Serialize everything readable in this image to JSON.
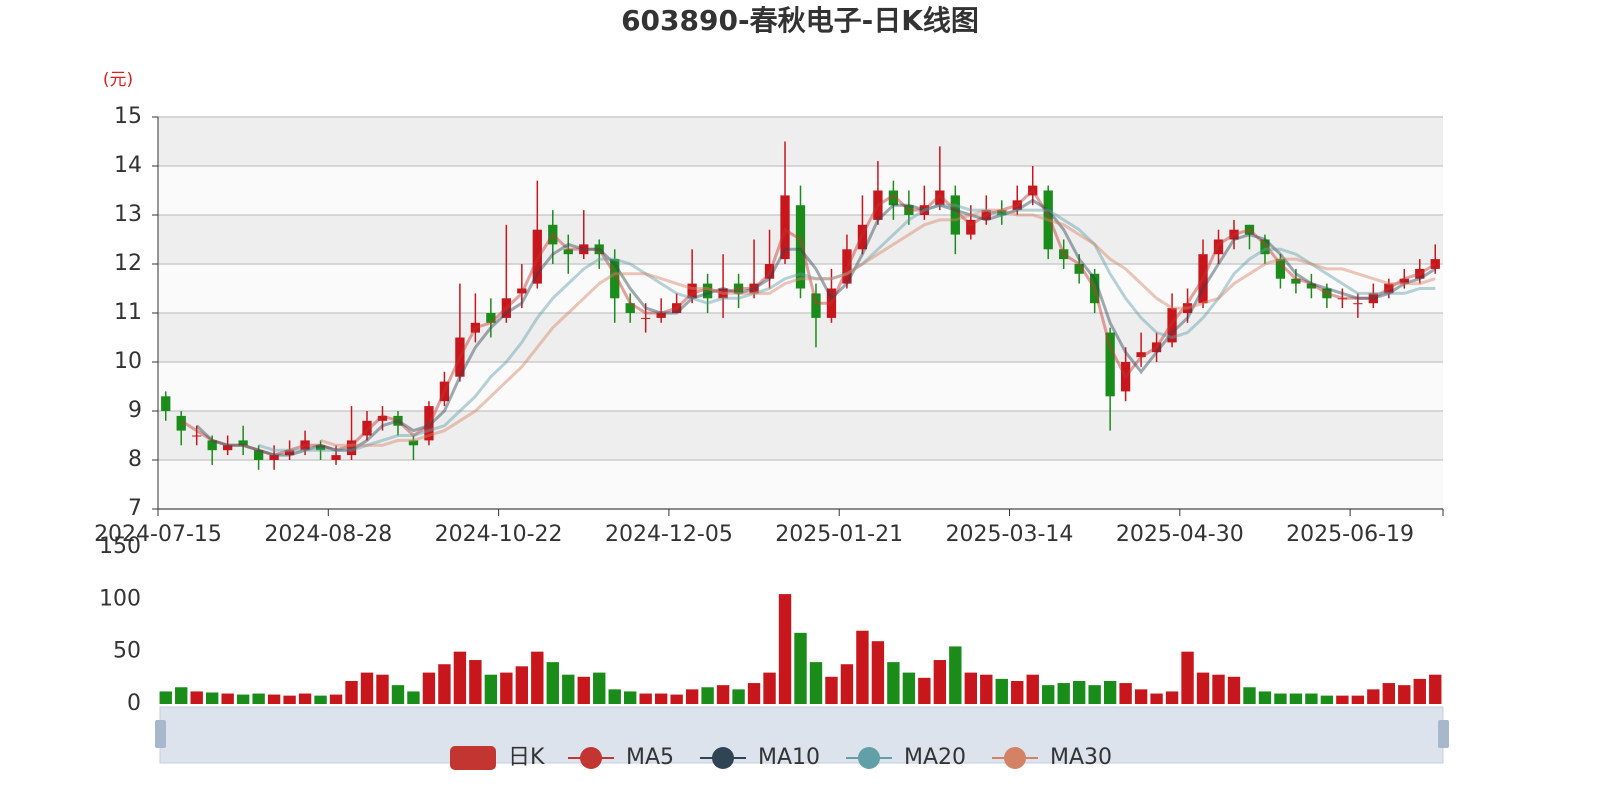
{
  "chart_data": {
    "type": "candlestick",
    "title": "603890-春秋电子-日K线图",
    "y_label": "(元)",
    "candle_name": "日K",
    "candle_color": "#c23531",
    "up_color": "#c8161d",
    "down_color": "#1a8c1a",
    "categories": [
      "2024-07-15",
      null,
      null,
      null,
      null,
      null,
      null,
      null,
      null,
      null,
      null,
      "2024-08-28",
      null,
      null,
      null,
      null,
      null,
      null,
      null,
      null,
      null,
      null,
      "2024-10-22",
      null,
      null,
      null,
      null,
      null,
      null,
      null,
      null,
      null,
      null,
      "2024-12-05",
      null,
      null,
      null,
      null,
      null,
      null,
      null,
      null,
      null,
      null,
      "2025-01-21",
      null,
      null,
      null,
      null,
      null,
      null,
      null,
      null,
      null,
      null,
      "2025-03-14",
      null,
      null,
      null,
      null,
      null,
      null,
      null,
      null,
      null,
      null,
      "2025-04-30",
      null,
      null,
      null,
      null,
      null,
      null,
      null,
      null,
      null,
      null,
      "2025-06-19",
      null,
      null,
      null,
      null,
      null
    ],
    "ohlc": [
      [
        9.3,
        9.0,
        8.8,
        9.4
      ],
      [
        8.9,
        8.6,
        8.3,
        9.0
      ],
      [
        8.5,
        8.5,
        8.3,
        8.7
      ],
      [
        8.4,
        8.2,
        7.9,
        8.5
      ],
      [
        8.2,
        8.3,
        8.1,
        8.5
      ],
      [
        8.4,
        8.3,
        8.1,
        8.7
      ],
      [
        8.2,
        8.0,
        7.8,
        8.3
      ],
      [
        8.0,
        8.1,
        7.8,
        8.3
      ],
      [
        8.1,
        8.2,
        8.0,
        8.4
      ],
      [
        8.2,
        8.4,
        8.1,
        8.6
      ],
      [
        8.3,
        8.2,
        8.0,
        8.4
      ],
      [
        8.0,
        8.1,
        7.9,
        8.3
      ],
      [
        8.1,
        8.4,
        8.0,
        9.1
      ],
      [
        8.5,
        8.8,
        8.4,
        9.0
      ],
      [
        8.8,
        8.9,
        8.6,
        9.1
      ],
      [
        8.9,
        8.7,
        8.5,
        9.0
      ],
      [
        8.4,
        8.3,
        8.0,
        8.5
      ],
      [
        8.4,
        9.1,
        8.3,
        9.2
      ],
      [
        9.2,
        9.6,
        9.1,
        9.8
      ],
      [
        9.7,
        10.5,
        9.6,
        11.6
      ],
      [
        10.6,
        10.8,
        10.4,
        11.4
      ],
      [
        11.0,
        10.8,
        10.5,
        11.3
      ],
      [
        10.9,
        11.3,
        10.8,
        12.8
      ],
      [
        11.4,
        11.5,
        11.1,
        12.0
      ],
      [
        11.6,
        12.7,
        11.5,
        13.7
      ],
      [
        12.8,
        12.4,
        12.0,
        13.1
      ],
      [
        12.3,
        12.2,
        11.8,
        12.6
      ],
      [
        12.2,
        12.4,
        12.1,
        13.1
      ],
      [
        12.4,
        12.2,
        11.9,
        12.5
      ],
      [
        12.1,
        11.3,
        10.8,
        12.3
      ],
      [
        11.2,
        11.0,
        10.8,
        11.4
      ],
      [
        10.9,
        10.9,
        10.6,
        11.2
      ],
      [
        10.9,
        11.0,
        10.8,
        11.3
      ],
      [
        11.0,
        11.2,
        11.0,
        11.4
      ],
      [
        11.3,
        11.6,
        11.2,
        12.3
      ],
      [
        11.6,
        11.3,
        11.0,
        11.8
      ],
      [
        11.3,
        11.5,
        10.9,
        12.2
      ],
      [
        11.6,
        11.4,
        11.1,
        11.8
      ],
      [
        11.4,
        11.6,
        11.3,
        12.5
      ],
      [
        11.7,
        12.0,
        11.5,
        12.7
      ],
      [
        12.1,
        13.4,
        12.0,
        14.5
      ],
      [
        13.2,
        11.5,
        11.3,
        13.6
      ],
      [
        11.4,
        10.9,
        10.3,
        11.6
      ],
      [
        10.9,
        11.5,
        10.8,
        11.9
      ],
      [
        11.6,
        12.3,
        11.5,
        12.6
      ],
      [
        12.3,
        12.8,
        12.2,
        13.4
      ],
      [
        12.9,
        13.5,
        12.8,
        14.1
      ],
      [
        13.5,
        13.2,
        12.9,
        13.7
      ],
      [
        13.2,
        13.0,
        12.8,
        13.5
      ],
      [
        13.0,
        13.2,
        12.9,
        13.6
      ],
      [
        13.2,
        13.5,
        13.1,
        14.4
      ],
      [
        13.4,
        12.6,
        12.2,
        13.6
      ],
      [
        12.6,
        12.9,
        12.5,
        13.2
      ],
      [
        12.9,
        13.1,
        12.8,
        13.4
      ],
      [
        13.1,
        13.0,
        12.8,
        13.3
      ],
      [
        13.1,
        13.3,
        13.0,
        13.6
      ],
      [
        13.4,
        13.6,
        13.2,
        14.0
      ],
      [
        13.5,
        12.3,
        12.1,
        13.6
      ],
      [
        12.3,
        12.1,
        11.9,
        12.5
      ],
      [
        12.0,
        11.8,
        11.6,
        12.2
      ],
      [
        11.8,
        11.2,
        11.0,
        11.9
      ],
      [
        10.6,
        9.3,
        8.6,
        10.7
      ],
      [
        9.4,
        10.0,
        9.2,
        10.3
      ],
      [
        10.1,
        10.2,
        9.9,
        10.6
      ],
      [
        10.2,
        10.4,
        10.0,
        10.6
      ],
      [
        10.4,
        11.1,
        10.3,
        11.4
      ],
      [
        11.0,
        11.2,
        10.8,
        11.5
      ],
      [
        11.2,
        12.2,
        11.1,
        12.5
      ],
      [
        12.2,
        12.5,
        12.0,
        12.7
      ],
      [
        12.5,
        12.7,
        12.3,
        12.9
      ],
      [
        12.8,
        12.6,
        12.3,
        12.8
      ],
      [
        12.5,
        12.2,
        12.0,
        12.6
      ],
      [
        12.1,
        11.7,
        11.5,
        12.2
      ],
      [
        11.7,
        11.6,
        11.4,
        11.9
      ],
      [
        11.6,
        11.5,
        11.3,
        11.8
      ],
      [
        11.5,
        11.3,
        11.1,
        11.6
      ],
      [
        11.3,
        11.3,
        11.1,
        11.5
      ],
      [
        11.2,
        11.2,
        10.9,
        11.4
      ],
      [
        11.2,
        11.4,
        11.1,
        11.6
      ],
      [
        11.4,
        11.6,
        11.3,
        11.7
      ],
      [
        11.6,
        11.7,
        11.5,
        11.9
      ],
      [
        11.7,
        11.9,
        11.6,
        12.1
      ],
      [
        11.9,
        12.1,
        11.8,
        12.4
      ]
    ],
    "ylim": [
      7,
      15
    ],
    "yticks": [
      7,
      8,
      9,
      10,
      11,
      12,
      13,
      14,
      15
    ],
    "volume": {
      "values": [
        12,
        16,
        12,
        11,
        10,
        9,
        10,
        9,
        8,
        10,
        8,
        9,
        22,
        30,
        28,
        18,
        12,
        30,
        38,
        50,
        42,
        28,
        30,
        36,
        50,
        40,
        28,
        26,
        30,
        14,
        12,
        10,
        10,
        9,
        14,
        16,
        18,
        14,
        20,
        30,
        105,
        68,
        40,
        26,
        38,
        70,
        60,
        40,
        30,
        25,
        42,
        55,
        30,
        28,
        24,
        22,
        28,
        18,
        20,
        22,
        18,
        22,
        20,
        14,
        10,
        12,
        50,
        30,
        28,
        26,
        16,
        12,
        10,
        10,
        10,
        8,
        8,
        8,
        14,
        20,
        18,
        24,
        28
      ],
      "ylim": [
        0,
        150
      ],
      "yticks": [
        0,
        50,
        100,
        150
      ]
    },
    "series": [
      {
        "name": "MA5",
        "color": "#c23531",
        "values": [
          null,
          8.8,
          8.6,
          8.4,
          8.3,
          8.3,
          8.2,
          8.1,
          8.2,
          8.3,
          8.3,
          8.2,
          8.3,
          8.6,
          8.9,
          8.8,
          8.5,
          8.7,
          9.4,
          10.1,
          10.7,
          10.8,
          11.1,
          11.4,
          12.1,
          12.6,
          12.3,
          12.3,
          12.3,
          11.8,
          11.2,
          11.0,
          11.0,
          11.1,
          11.4,
          11.5,
          11.4,
          11.5,
          11.5,
          11.8,
          12.7,
          12.5,
          11.2,
          11.2,
          11.9,
          12.6,
          13.2,
          13.4,
          13.1,
          13.1,
          13.4,
          13.1,
          12.8,
          13.0,
          13.1,
          13.2,
          13.5,
          13.0,
          12.2,
          12.0,
          11.5,
          10.3,
          9.7,
          10.1,
          10.3,
          10.8,
          11.2,
          11.7,
          12.4,
          12.6,
          12.7,
          12.4,
          12.0,
          11.7,
          11.6,
          11.4,
          11.3,
          11.3,
          11.3,
          11.5,
          11.7,
          11.8,
          12.0
        ]
      },
      {
        "name": "MA10",
        "color": "#2f4554",
        "values": [
          null,
          null,
          8.7,
          8.4,
          8.3,
          8.3,
          8.2,
          8.1,
          8.1,
          8.2,
          8.3,
          8.2,
          8.2,
          8.4,
          8.7,
          8.8,
          8.6,
          8.7,
          9.0,
          9.7,
          10.3,
          10.7,
          11.0,
          11.2,
          11.8,
          12.2,
          12.4,
          12.3,
          12.3,
          12.0,
          11.5,
          11.1,
          11.0,
          11.0,
          11.3,
          11.4,
          11.5,
          11.4,
          11.5,
          11.7,
          12.3,
          12.3,
          11.9,
          11.3,
          11.6,
          12.2,
          12.9,
          13.2,
          13.2,
          13.1,
          13.2,
          13.1,
          13.0,
          12.9,
          13.0,
          13.1,
          13.3,
          13.1,
          12.7,
          12.1,
          11.7,
          10.8,
          10.2,
          9.8,
          10.2,
          10.6,
          10.9,
          11.5,
          12.0,
          12.5,
          12.6,
          12.5,
          12.2,
          11.8,
          11.6,
          11.5,
          11.4,
          11.3,
          11.3,
          11.4,
          11.6,
          11.7,
          11.9
        ]
      },
      {
        "name": "MA20",
        "color": "#61a0a8",
        "values": [
          null,
          null,
          null,
          null,
          null,
          null,
          8.3,
          8.2,
          8.2,
          8.2,
          8.2,
          8.2,
          8.2,
          8.3,
          8.4,
          8.5,
          8.5,
          8.6,
          8.7,
          9.0,
          9.3,
          9.7,
          10.0,
          10.4,
          10.9,
          11.3,
          11.6,
          11.9,
          12.1,
          12.1,
          12.0,
          11.8,
          11.6,
          11.4,
          11.3,
          11.2,
          11.3,
          11.3,
          11.4,
          11.5,
          11.7,
          11.8,
          11.7,
          11.7,
          11.8,
          12.0,
          12.3,
          12.6,
          12.9,
          13.1,
          13.2,
          13.2,
          13.1,
          13.1,
          13.0,
          13.1,
          13.1,
          13.1,
          12.9,
          12.7,
          12.4,
          11.8,
          11.3,
          10.9,
          10.6,
          10.5,
          10.6,
          10.9,
          11.3,
          11.8,
          12.1,
          12.3,
          12.3,
          12.2,
          12.0,
          11.8,
          11.6,
          11.4,
          11.4,
          11.4,
          11.4,
          11.5,
          11.5
        ]
      },
      {
        "name": "MA30",
        "color": "#d48265",
        "values": [
          null,
          null,
          null,
          null,
          null,
          null,
          null,
          null,
          null,
          null,
          8.4,
          8.3,
          8.3,
          8.3,
          8.3,
          8.4,
          8.4,
          8.5,
          8.6,
          8.8,
          9.0,
          9.3,
          9.6,
          9.9,
          10.3,
          10.7,
          11.0,
          11.3,
          11.6,
          11.8,
          11.8,
          11.8,
          11.7,
          11.6,
          11.5,
          11.5,
          11.4,
          11.4,
          11.4,
          11.4,
          11.6,
          11.7,
          11.7,
          11.7,
          11.8,
          12.0,
          12.2,
          12.4,
          12.6,
          12.8,
          12.9,
          12.9,
          13.0,
          13.1,
          13.1,
          13.0,
          13.0,
          12.9,
          12.8,
          12.6,
          12.4,
          12.1,
          11.9,
          11.6,
          11.3,
          11.1,
          11.1,
          11.2,
          11.3,
          11.6,
          11.8,
          12.0,
          12.1,
          12.1,
          12.0,
          11.9,
          11.9,
          11.8,
          11.7,
          11.6,
          11.6,
          11.6,
          11.7
        ]
      }
    ]
  }
}
